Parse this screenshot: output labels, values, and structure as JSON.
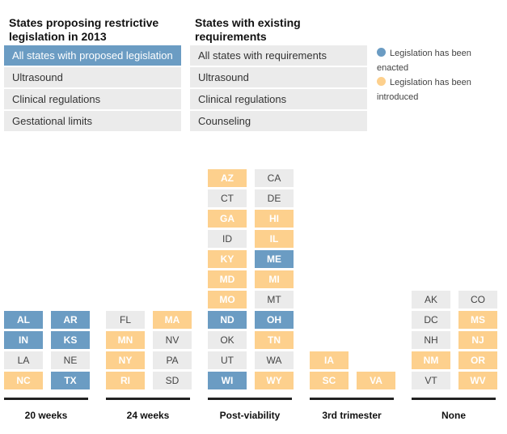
{
  "left_panel": {
    "heading_line1": "States proposing restrictive",
    "heading_line2": "legislation in 2013",
    "buttons": [
      "All states with proposed legislation",
      "Ultrasound",
      "Clinical regulations",
      "Gestational limits"
    ]
  },
  "right_panel": {
    "heading_line1": "States with existing",
    "heading_line2": "requirements",
    "buttons": [
      "All states with requirements",
      "Ultrasound",
      "Clinical regulations",
      "Counseling"
    ]
  },
  "legend": {
    "enacted_line1": "Legislation has been",
    "enacted_line2": "enacted",
    "introduced_line1": "Legislation has been",
    "introduced_line2": "introduced"
  },
  "colors": {
    "enacted": "#6b9cc3",
    "introduced": "#fdd08d",
    "none": "#ebebeb"
  },
  "columns": [
    {
      "label": "20 weeks",
      "states": [
        [
          "NC",
          "introduced"
        ],
        [
          "TX",
          "enacted"
        ],
        [
          "LA",
          "none"
        ],
        [
          "NE",
          "none"
        ],
        [
          "IN",
          "enacted"
        ],
        [
          "KS",
          "enacted"
        ],
        [
          "AL",
          "enacted"
        ],
        [
          "AR",
          "enacted"
        ]
      ]
    },
    {
      "label": "24 weeks",
      "states": [
        [
          "RI",
          "introduced"
        ],
        [
          "SD",
          "none"
        ],
        [
          "NY",
          "introduced"
        ],
        [
          "PA",
          "none"
        ],
        [
          "MN",
          "introduced"
        ],
        [
          "NV",
          "none"
        ],
        [
          "FL",
          "none"
        ],
        [
          "MA",
          "introduced"
        ]
      ]
    },
    {
      "label": "Post-viability",
      "states": [
        [
          "WI",
          "enacted"
        ],
        [
          "WY",
          "introduced"
        ],
        [
          "UT",
          "none"
        ],
        [
          "WA",
          "none"
        ],
        [
          "OK",
          "none"
        ],
        [
          "TN",
          "introduced"
        ],
        [
          "ND",
          "enacted"
        ],
        [
          "OH",
          "enacted"
        ],
        [
          "MO",
          "introduced"
        ],
        [
          "MT",
          "none"
        ],
        [
          "MD",
          "introduced"
        ],
        [
          "MI",
          "introduced"
        ],
        [
          "KY",
          "introduced"
        ],
        [
          "ME",
          "enacted"
        ],
        [
          "ID",
          "none"
        ],
        [
          "IL",
          "introduced"
        ],
        [
          "GA",
          "introduced"
        ],
        [
          "HI",
          "introduced"
        ],
        [
          "CT",
          "none"
        ],
        [
          "DE",
          "none"
        ],
        [
          "AZ",
          "introduced"
        ],
        [
          "CA",
          "none"
        ]
      ]
    },
    {
      "label": "3rd trimester",
      "states": [
        [
          "SC",
          "introduced"
        ],
        [
          "VA",
          "introduced"
        ],
        [
          "IA",
          "introduced"
        ],
        null
      ]
    },
    {
      "label": "None",
      "states": [
        [
          "VT",
          "none"
        ],
        [
          "WV",
          "introduced"
        ],
        [
          "NM",
          "introduced"
        ],
        [
          "OR",
          "introduced"
        ],
        [
          "NH",
          "none"
        ],
        [
          "NJ",
          "introduced"
        ],
        [
          "DC",
          "none"
        ],
        [
          "MS",
          "introduced"
        ],
        [
          "AK",
          "none"
        ],
        [
          "CO",
          "none"
        ]
      ]
    }
  ]
}
